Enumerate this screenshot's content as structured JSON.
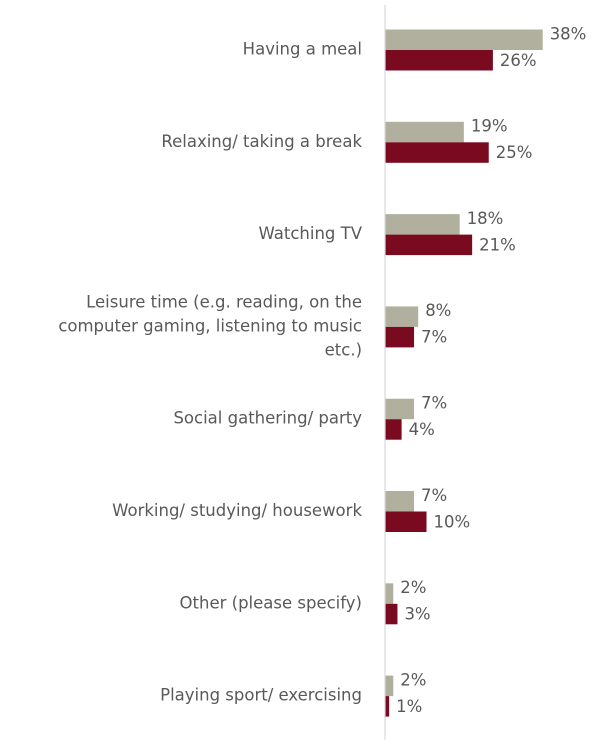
{
  "colors": {
    "series_a": "#b1b09e",
    "series_b": "#7a0a1f",
    "text": "#595959",
    "axis": "#d9d9d9"
  },
  "chart_data": {
    "type": "bar",
    "orientation": "horizontal",
    "categories": [
      [
        "Having a meal"
      ],
      [
        "Relaxing/ taking a break"
      ],
      [
        "Watching TV"
      ],
      [
        "Leisure time (e.g. reading, on the",
        "computer gaming, listening to music",
        "etc.)"
      ],
      [
        "Social gathering/ party"
      ],
      [
        "Working/ studying/ housework"
      ],
      [
        "Other (please specify)"
      ],
      [
        "Playing sport/ exercising"
      ]
    ],
    "series": [
      {
        "values": [
          38,
          19,
          18,
          8,
          7,
          7,
          2,
          2
        ],
        "labels": [
          "38%",
          "19%",
          "18%",
          "8%",
          "7%",
          "7%",
          "2%",
          "2%"
        ],
        "color": "#b1b09e"
      },
      {
        "values": [
          26,
          25,
          21,
          7,
          4,
          10,
          3,
          1
        ],
        "labels": [
          "26%",
          "25%",
          "21%",
          "7%",
          "4%",
          "10%",
          "3%",
          "1%"
        ],
        "color": "#7a0a1f"
      }
    ],
    "xlim": [
      0,
      40
    ],
    "grid": false,
    "legend": false
  }
}
